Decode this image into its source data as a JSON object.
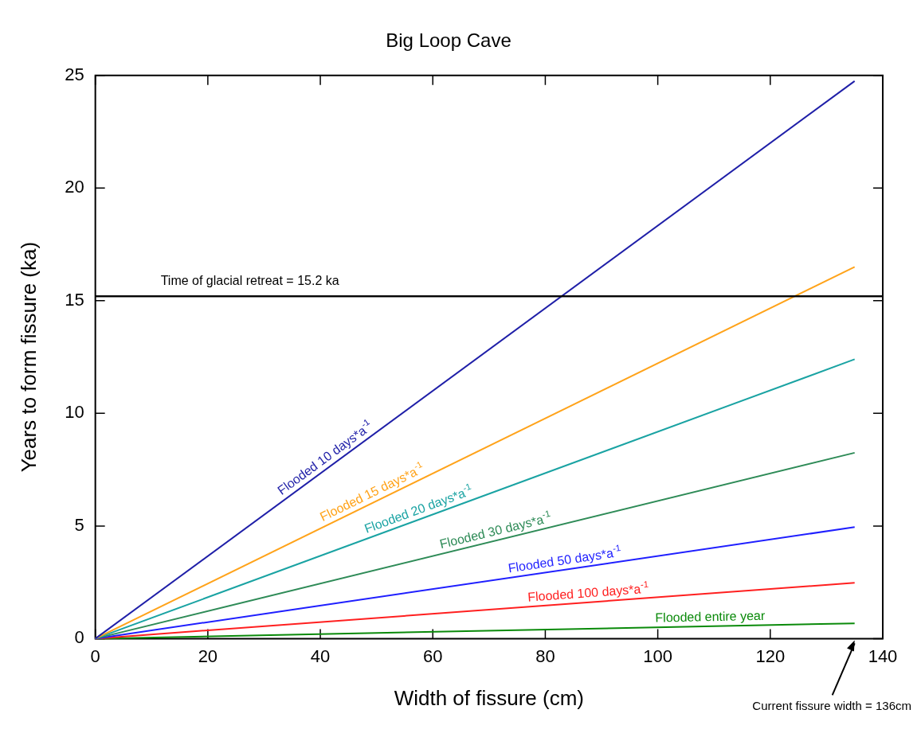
{
  "chart_data": {
    "type": "line",
    "title": "Big Loop Cave",
    "xlabel": "Width of fissure (cm)",
    "ylabel": "Years to form fissure (ka)",
    "xlim": [
      0,
      140
    ],
    "xticks": [
      0,
      20,
      40,
      60,
      80,
      100,
      120,
      140
    ],
    "ylim": [
      0,
      25
    ],
    "yticks": [
      0,
      5,
      10,
      15,
      20,
      25
    ],
    "grid": false,
    "legend": false,
    "marker": "none",
    "x": [
      0,
      135
    ],
    "series": [
      {
        "name": "Flooded 10 days*a$^{-1}$",
        "color": "#1f1fa8",
        "values": [
          0,
          24.75
        ]
      },
      {
        "name": "Flooded 15 days*a$^{-1}$",
        "color": "#ffa31a",
        "values": [
          0,
          16.5
        ]
      },
      {
        "name": "Flooded 20 days*a$^{-1}$",
        "color": "#1aa3a3",
        "values": [
          0,
          12.4
        ]
      },
      {
        "name": "Flooded 30 days*a$^{-1}$",
        "color": "#2e8b57",
        "values": [
          0,
          8.25
        ]
      },
      {
        "name": "Flooded 50 days*a$^{-1}$",
        "color": "#1f1fff",
        "values": [
          0,
          4.95
        ]
      },
      {
        "name": "Flooded 100 days*a$^{-1}$",
        "color": "#ff1f1f",
        "values": [
          0,
          2.48
        ]
      },
      {
        "name": "Flooded entire year",
        "color": "#0a8a0a",
        "values": [
          0,
          0.68
        ]
      }
    ],
    "ref_lines": [
      {
        "axis": "y",
        "value": 15.2,
        "label": "Time of glacial retreat = 15.2 ka",
        "color": "#000000"
      }
    ],
    "annotations": [
      "Current fissure width = 136cm"
    ]
  }
}
